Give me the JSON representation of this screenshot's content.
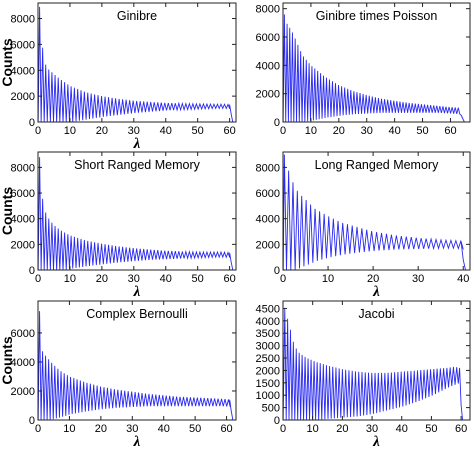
{
  "figure": {
    "line_color": "#2a2af0",
    "frame_color": "#222222"
  },
  "chart_data": [
    {
      "type": "line",
      "title": "Ginibre",
      "xlabel": "λ",
      "ylabel": "Counts",
      "xlim": [
        0,
        62
      ],
      "ylim": [
        0,
        9200
      ],
      "xticks": [
        0,
        10,
        20,
        30,
        40,
        50,
        60
      ],
      "yticks": [
        0,
        2000,
        4000,
        6000,
        8000
      ],
      "grid": false,
      "series": [
        {
          "x": [
            0.5,
            1.5,
            2.6,
            3.7,
            5,
            7,
            10,
            15,
            20,
            25,
            30,
            35,
            40,
            45,
            50,
            55,
            58,
            60,
            60.5,
            61
          ],
          "peaks": [
            8900,
            5600,
            4200,
            4000,
            3700,
            3300,
            2800,
            2300,
            2000,
            1800,
            1650,
            1550,
            1480,
            1430,
            1400,
            1380,
            1380,
            1350,
            600,
            0
          ],
          "troughs": [
            0,
            0,
            0,
            0,
            0,
            0,
            0,
            200,
            400,
            550,
            700,
            800,
            900,
            950,
            1000,
            1050,
            1060,
            1000,
            400,
            0
          ]
        }
      ]
    },
    {
      "type": "line",
      "title": "Ginibre times Poisson",
      "xlabel": "",
      "ylabel": "",
      "xlim": [
        0,
        67
      ],
      "ylim": [
        0,
        8400
      ],
      "xticks": [
        0,
        10,
        20,
        30,
        40,
        50,
        60
      ],
      "yticks": [
        0,
        2000,
        4000,
        6000,
        8000
      ],
      "grid": false,
      "series": [
        {
          "x": [
            0.5,
            1.5,
            2.6,
            3.7,
            5,
            7,
            10,
            15,
            20,
            25,
            30,
            35,
            40,
            45,
            50,
            55,
            60,
            63,
            64,
            65
          ],
          "peaks": [
            7600,
            6900,
            6600,
            6200,
            5600,
            4700,
            4000,
            3200,
            2600,
            2200,
            1900,
            1650,
            1500,
            1350,
            1250,
            1150,
            1050,
            1000,
            400,
            0
          ],
          "troughs": [
            0,
            0,
            0,
            0,
            0,
            0,
            100,
            300,
            450,
            550,
            600,
            650,
            650,
            650,
            650,
            650,
            600,
            550,
            200,
            0
          ]
        }
      ]
    },
    {
      "type": "line",
      "title": "Short Ranged Memory",
      "xlabel": "λ",
      "ylabel": "Counts",
      "xlim": [
        0,
        62
      ],
      "ylim": [
        0,
        9200
      ],
      "xticks": [
        0,
        10,
        20,
        30,
        40,
        50,
        60
      ],
      "yticks": [
        0,
        2000,
        4000,
        6000,
        8000
      ],
      "grid": false,
      "series": [
        {
          "x": [
            0.5,
            1.5,
            2.6,
            3.7,
            5,
            7,
            10,
            15,
            20,
            25,
            30,
            35,
            40,
            45,
            50,
            55,
            58,
            60,
            60.5,
            61
          ],
          "peaks": [
            8800,
            5400,
            4300,
            3900,
            3500,
            3100,
            2700,
            2300,
            2050,
            1850,
            1700,
            1600,
            1500,
            1450,
            1400,
            1400,
            1400,
            1350,
            600,
            0
          ],
          "troughs": [
            0,
            0,
            0,
            0,
            0,
            0,
            100,
            300,
            450,
            600,
            700,
            800,
            850,
            900,
            950,
            1000,
            1000,
            950,
            400,
            0
          ]
        }
      ]
    },
    {
      "type": "line",
      "title": "Long Ranged Memory",
      "xlabel": "λ",
      "ylabel": "",
      "xlim": [
        0,
        41.5
      ],
      "ylim": [
        0,
        9200
      ],
      "xticks": [
        0,
        10,
        20,
        30,
        40
      ],
      "yticks": [
        0,
        2000,
        4000,
        6000,
        8000
      ],
      "grid": false,
      "series": [
        {
          "x": [
            0.3,
            1,
            1.8,
            2.6,
            3.5,
            5,
            7,
            10,
            13,
            16,
            20,
            25,
            30,
            35,
            38,
            39.5,
            40,
            40.5
          ],
          "peaks": [
            9000,
            8000,
            7200,
            6500,
            6000,
            5500,
            4800,
            4200,
            3700,
            3400,
            3000,
            2700,
            2500,
            2350,
            2300,
            2250,
            800,
            0
          ],
          "troughs": [
            0,
            0,
            0,
            0,
            200,
            400,
            700,
            1000,
            1200,
            1350,
            1500,
            1600,
            1650,
            1700,
            1700,
            1600,
            300,
            0
          ]
        }
      ]
    },
    {
      "type": "line",
      "title": "Complex Bernoulli",
      "xlabel": "λ",
      "ylabel": "Counts",
      "xlim": [
        0,
        63
      ],
      "ylim": [
        0,
        8200
      ],
      "xticks": [
        0,
        10,
        20,
        30,
        40,
        50,
        60
      ],
      "yticks": [
        0,
        2000,
        4000,
        6000
      ],
      "grid": false,
      "series": [
        {
          "x": [
            0.5,
            1.5,
            2.6,
            3.7,
            5,
            7,
            10,
            15,
            20,
            25,
            30,
            35,
            40,
            45,
            50,
            55,
            59,
            61,
            61.5,
            62
          ],
          "peaks": [
            7500,
            4600,
            4400,
            4100,
            3800,
            3400,
            3000,
            2600,
            2300,
            2100,
            1950,
            1800,
            1700,
            1600,
            1550,
            1500,
            1450,
            1400,
            600,
            0
          ],
          "troughs": [
            0,
            0,
            0,
            0,
            100,
            200,
            400,
            600,
            750,
            850,
            900,
            950,
            950,
            950,
            950,
            950,
            950,
            900,
            300,
            0
          ]
        }
      ]
    },
    {
      "type": "line",
      "title": "Jacobi",
      "xlabel": "λ",
      "ylabel": "",
      "xlim": [
        0,
        63
      ],
      "ylim": [
        0,
        4800
      ],
      "xticks": [
        0,
        10,
        20,
        30,
        40,
        50,
        60
      ],
      "yticks": [
        0,
        500,
        1000,
        1500,
        2000,
        2500,
        3000,
        3500,
        4000,
        4500
      ],
      "grid": false,
      "series": [
        {
          "x": [
            0.6,
            2.2,
            3.8,
            5.5,
            8,
            11,
            15,
            20,
            25,
            30,
            35,
            40,
            45,
            50,
            55,
            58,
            59.5,
            60,
            60.5
          ],
          "peaks": [
            4500,
            3800,
            3000,
            2700,
            2500,
            2350,
            2200,
            2050,
            1950,
            1900,
            1900,
            1950,
            2000,
            2050,
            2100,
            2150,
            2100,
            600,
            0
          ],
          "troughs": [
            0,
            0,
            0,
            0,
            0,
            0,
            50,
            100,
            150,
            250,
            400,
            550,
            750,
            1000,
            1300,
            1450,
            1500,
            200,
            0
          ]
        }
      ]
    }
  ]
}
